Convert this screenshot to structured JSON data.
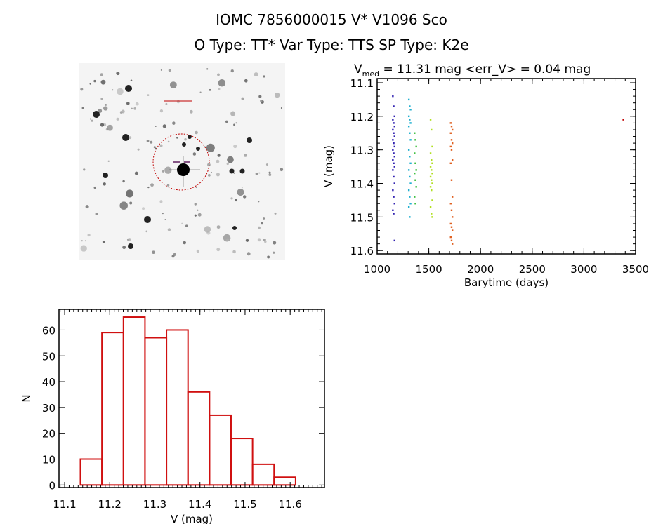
{
  "header": {
    "title_line1": "IOMC 7856000015    V* V1096 Sco",
    "title_line2": "O Type: TT*  Var Type: TTS   SP Type: K2e"
  },
  "finding_chart": {
    "target_marker_color": "#c00000"
  },
  "chart_data": [
    {
      "type": "scatter",
      "title_prefix": "V",
      "title_sub": "med",
      "title_rest": " = 11.31 mag <err_V> = 0.04 mag",
      "xlabel": "Barytime (days)",
      "ylabel": "V (mag)",
      "xlim": [
        1000,
        3500
      ],
      "ylim": [
        11.6,
        11.1
      ],
      "y_inverted": true,
      "xticks": [
        "1000",
        "1500",
        "2000",
        "2500",
        "3000",
        "3500"
      ],
      "yticks": [
        "11.1",
        "11.2",
        "11.3",
        "11.4",
        "11.5",
        "11.6"
      ],
      "series": [
        {
          "color": "#3020b0",
          "x": 1160,
          "y": [
            11.14,
            11.17,
            11.2,
            11.21,
            11.22,
            11.23,
            11.24,
            11.25,
            11.26,
            11.27,
            11.28,
            11.29,
            11.3,
            11.31,
            11.32,
            11.33,
            11.34,
            11.35,
            11.36,
            11.38,
            11.4,
            11.42,
            11.44,
            11.46,
            11.48,
            11.49,
            11.57
          ]
        },
        {
          "color": "#20b0d0",
          "x": 1315,
          "y": [
            11.15,
            11.17,
            11.18,
            11.2,
            11.21,
            11.22,
            11.23,
            11.25,
            11.27,
            11.3,
            11.32,
            11.34,
            11.36,
            11.38,
            11.4,
            11.42,
            11.44,
            11.46,
            11.47,
            11.5
          ]
        },
        {
          "color": "#40c040",
          "x": 1370,
          "y": [
            11.25,
            11.27,
            11.29,
            11.31,
            11.34,
            11.36,
            11.37,
            11.39,
            11.41,
            11.44,
            11.46
          ]
        },
        {
          "color": "#b0e020",
          "x": 1525,
          "y": [
            11.21,
            11.24,
            11.29,
            11.31,
            11.33,
            11.34,
            11.35,
            11.36,
            11.37,
            11.38,
            11.39,
            11.4,
            11.41,
            11.42,
            11.45,
            11.47,
            11.49,
            11.5
          ]
        },
        {
          "color": "#e06020",
          "x": 1720,
          "y": [
            11.22,
            11.23,
            11.24,
            11.25,
            11.27,
            11.28,
            11.29,
            11.3,
            11.33,
            11.34,
            11.39,
            11.44,
            11.46,
            11.48,
            11.5,
            11.52,
            11.53,
            11.54,
            11.56,
            11.57,
            11.58
          ]
        },
        {
          "color": "#c00000",
          "x": 3390,
          "y": [
            11.21
          ]
        }
      ]
    },
    {
      "type": "bar",
      "histogram": true,
      "xlabel": "V (mag)",
      "ylabel": "N",
      "xlim": [
        11.0875,
        11.676
      ],
      "ylim": [
        -1,
        68
      ],
      "xticks": [
        "11.1",
        "11.2",
        "11.3",
        "11.4",
        "11.5",
        "11.6"
      ],
      "yticks": [
        "0",
        "10",
        "20",
        "30",
        "40",
        "50",
        "60"
      ],
      "bin_start": 11.135,
      "bin_width": 0.0477,
      "values": [
        10,
        59,
        65,
        57,
        60,
        36,
        27,
        18,
        8,
        3
      ],
      "color": "#d01010"
    }
  ]
}
